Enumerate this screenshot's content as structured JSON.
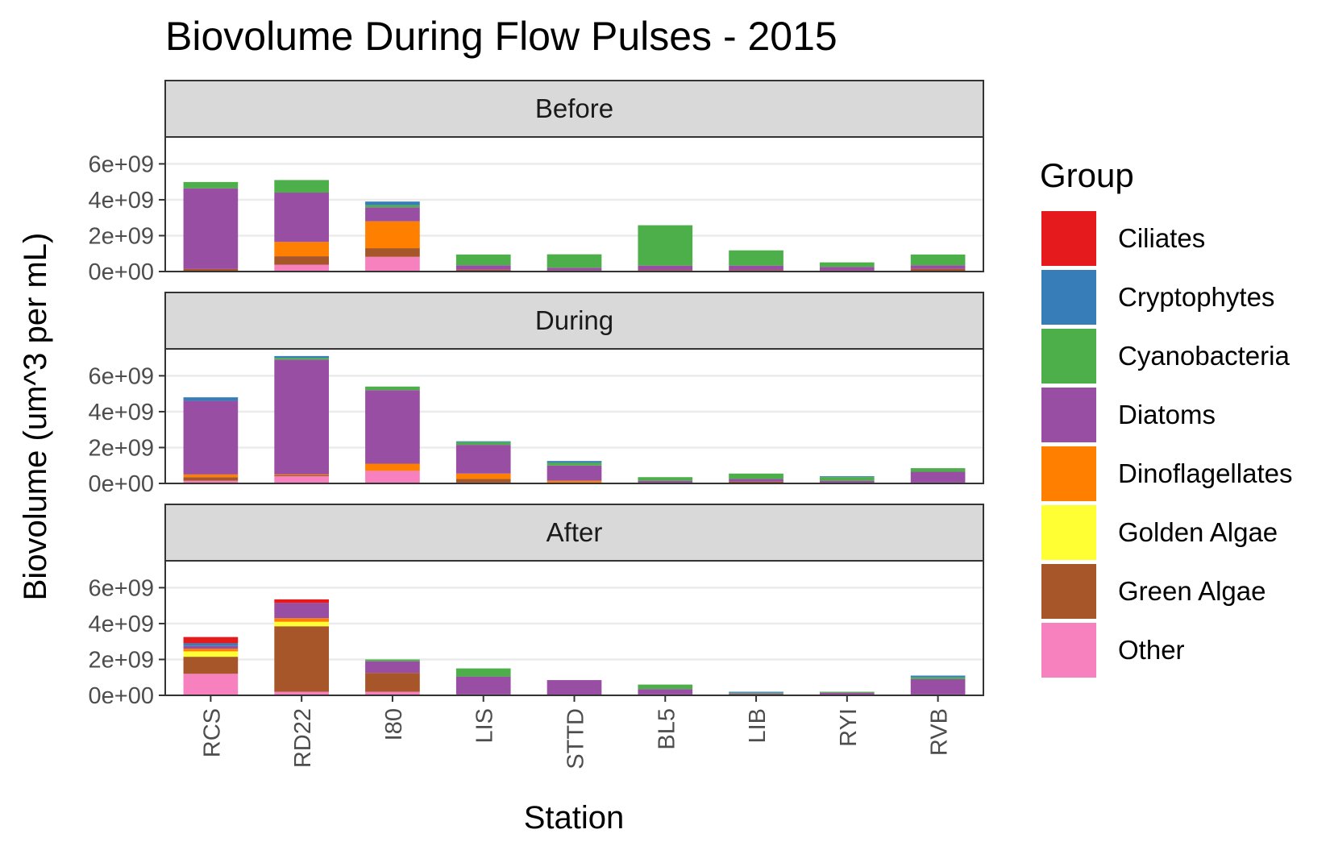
{
  "chart_data": {
    "type": "bar",
    "stacked": true,
    "title": "Biovolume During Flow Pulses - 2015",
    "xlabel": "Station",
    "ylabel": "Biovolume (um^3 per mL)",
    "categories": [
      "RCS",
      "RD22",
      "I80",
      "LIS",
      "STTD",
      "BL5",
      "LIB",
      "RYI",
      "RVB"
    ],
    "ylim": [
      0,
      7500000000
    ],
    "yticks": [
      0,
      2000000000,
      4000000000,
      6000000000
    ],
    "ytick_labels": [
      "0e+00",
      "2e+09",
      "4e+09",
      "6e+09"
    ],
    "grid": true,
    "legend": {
      "title": "Group",
      "position": "right",
      "entries": [
        {
          "name": "Ciliates",
          "color": "#e41a1c"
        },
        {
          "name": "Cryptophytes",
          "color": "#377eb8"
        },
        {
          "name": "Cyanobacteria",
          "color": "#4daf4a"
        },
        {
          "name": "Diatoms",
          "color": "#984ea3"
        },
        {
          "name": "Dinoflagellates",
          "color": "#ff7f00"
        },
        {
          "name": "Golden Algae",
          "color": "#ffff33"
        },
        {
          "name": "Green Algae",
          "color": "#a65628"
        },
        {
          "name": "Other",
          "color": "#f781bf"
        }
      ]
    },
    "stack_order_bottom_to_top": [
      "Other",
      "Green Algae",
      "Golden Algae",
      "Dinoflagellates",
      "Diatoms",
      "Cyanobacteria",
      "Cryptophytes",
      "Ciliates"
    ],
    "facets": [
      {
        "label": "Before",
        "series": [
          {
            "name": "Other",
            "values": [
              40000000,
              380000000,
              820000000,
              0,
              0,
              0,
              0,
              0,
              0
            ]
          },
          {
            "name": "Green Algae",
            "values": [
              100000000,
              470000000,
              480000000,
              100000000,
              60000000,
              80000000,
              80000000,
              60000000,
              150000000
            ]
          },
          {
            "name": "Golden Algae",
            "values": [
              0,
              0,
              0,
              0,
              0,
              0,
              0,
              0,
              0
            ]
          },
          {
            "name": "Dinoflagellates",
            "values": [
              0,
              800000000,
              1500000000,
              0,
              0,
              0,
              0,
              0,
              0
            ]
          },
          {
            "name": "Diatoms",
            "values": [
              4500000000,
              2750000000,
              780000000,
              250000000,
              150000000,
              250000000,
              250000000,
              200000000,
              200000000
            ]
          },
          {
            "name": "Cyanobacteria",
            "values": [
              350000000,
              700000000,
              120000000,
              600000000,
              750000000,
              2250000000,
              850000000,
              250000000,
              600000000
            ]
          },
          {
            "name": "Cryptophytes",
            "values": [
              0,
              0,
              200000000,
              0,
              0,
              0,
              0,
              0,
              0
            ]
          },
          {
            "name": "Ciliates",
            "values": [
              0,
              0,
              0,
              0,
              0,
              0,
              0,
              0,
              0
            ]
          }
        ]
      },
      {
        "label": "During",
        "series": [
          {
            "name": "Other",
            "values": [
              150000000,
              400000000,
              700000000,
              50000000,
              0,
              0,
              0,
              0,
              0
            ]
          },
          {
            "name": "Green Algae",
            "values": [
              200000000,
              50000000,
              0,
              200000000,
              50000000,
              50000000,
              100000000,
              50000000,
              50000000
            ]
          },
          {
            "name": "Golden Algae",
            "values": [
              0,
              0,
              0,
              0,
              0,
              0,
              0,
              0,
              0
            ]
          },
          {
            "name": "Dinoflagellates",
            "values": [
              150000000,
              50000000,
              400000000,
              300000000,
              100000000,
              0,
              0,
              0,
              0
            ]
          },
          {
            "name": "Diatoms",
            "values": [
              4100000000,
              6400000000,
              4100000000,
              1600000000,
              850000000,
              100000000,
              150000000,
              100000000,
              600000000
            ]
          },
          {
            "name": "Cyanobacteria",
            "values": [
              0,
              100000000,
              200000000,
              150000000,
              150000000,
              200000000,
              300000000,
              200000000,
              200000000
            ]
          },
          {
            "name": "Cryptophytes",
            "values": [
              200000000,
              100000000,
              0,
              50000000,
              100000000,
              0,
              0,
              50000000,
              0
            ]
          },
          {
            "name": "Ciliates",
            "values": [
              0,
              0,
              0,
              0,
              0,
              0,
              0,
              0,
              0
            ]
          }
        ]
      },
      {
        "label": "After",
        "series": [
          {
            "name": "Other",
            "values": [
              1200000000,
              200000000,
              200000000,
              0,
              0,
              0,
              0,
              0,
              0
            ]
          },
          {
            "name": "Green Algae",
            "values": [
              950000000,
              3650000000,
              1050000000,
              50000000,
              0,
              50000000,
              50000000,
              50000000,
              50000000
            ]
          },
          {
            "name": "Golden Algae",
            "values": [
              300000000,
              250000000,
              0,
              0,
              0,
              0,
              0,
              0,
              0
            ]
          },
          {
            "name": "Dinoflagellates",
            "values": [
              150000000,
              200000000,
              0,
              0,
              0,
              0,
              0,
              0,
              0
            ]
          },
          {
            "name": "Diatoms",
            "values": [
              150000000,
              850000000,
              650000000,
              1000000000,
              850000000,
              300000000,
              50000000,
              100000000,
              850000000
            ]
          },
          {
            "name": "Cyanobacteria",
            "values": [
              0,
              0,
              100000000,
              450000000,
              0,
              250000000,
              50000000,
              50000000,
              100000000
            ]
          },
          {
            "name": "Cryptophytes",
            "values": [
              150000000,
              0,
              0,
              0,
              0,
              0,
              50000000,
              0,
              100000000
            ]
          },
          {
            "name": "Ciliates",
            "values": [
              350000000,
              200000000,
              0,
              0,
              0,
              0,
              0,
              0,
              0
            ]
          }
        ]
      }
    ]
  }
}
